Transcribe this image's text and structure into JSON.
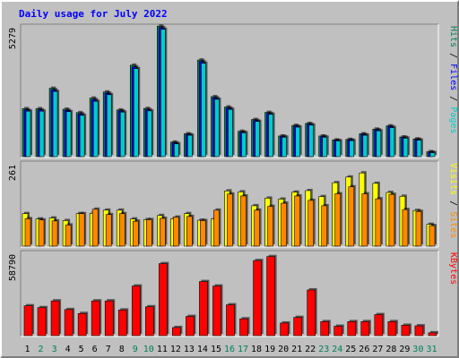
{
  "chart_data": [
    {
      "type": "bar",
      "title": "Daily usage for July 2022",
      "panel": "top",
      "axis_max_label": "5279",
      "right_label_parts": [
        "Pages",
        "Files",
        "Hits"
      ],
      "categories": [
        "1",
        "2",
        "3",
        "4",
        "5",
        "6",
        "7",
        "8",
        "9",
        "10",
        "11",
        "12",
        "13",
        "14",
        "15",
        "16",
        "17",
        "18",
        "19",
        "20",
        "21",
        "22",
        "23",
        "24",
        "25",
        "26",
        "27",
        "28",
        "29",
        "30",
        "31"
      ],
      "weekend_days": [
        "2",
        "3",
        "9",
        "10",
        "16",
        "17",
        "23",
        "24",
        "30",
        "31"
      ],
      "ylim": [
        0,
        5279
      ],
      "series": [
        {
          "name": "Hits",
          "color": "#00805b",
          "values": [
            1950,
            1950,
            2780,
            1930,
            1790,
            2380,
            2630,
            1900,
            3720,
            1960,
            5310,
            590,
            930,
            3930,
            2440,
            2020,
            1030,
            1510,
            1800,
            840,
            1270,
            1350,
            840,
            680,
            700,
            930,
            1120,
            1250,
            800,
            720,
            200
          ]
        },
        {
          "name": "Files",
          "color": "#0000ff",
          "values": [
            1900,
            1900,
            2720,
            1880,
            1740,
            2320,
            2580,
            1860,
            3650,
            1910,
            5250,
            560,
            900,
            3870,
            2390,
            1970,
            1000,
            1470,
            1760,
            820,
            1240,
            1320,
            820,
            660,
            680,
            900,
            1090,
            1220,
            780,
            700,
            180
          ]
        },
        {
          "name": "Pages",
          "color": "#00cccc",
          "values": [
            1850,
            1850,
            2650,
            1830,
            1680,
            2250,
            2520,
            1810,
            3580,
            1860,
            5180,
            520,
            870,
            3800,
            2330,
            1920,
            970,
            1430,
            1720,
            790,
            1200,
            1280,
            790,
            640,
            650,
            870,
            1050,
            1180,
            750,
            670,
            160
          ]
        }
      ]
    },
    {
      "type": "bar",
      "panel": "middle",
      "axis_max_label": "261",
      "right_label_parts": [
        "Sites",
        "Visits"
      ],
      "categories": [
        "1",
        "2",
        "3",
        "4",
        "5",
        "6",
        "7",
        "8",
        "9",
        "10",
        "11",
        "12",
        "13",
        "14",
        "15",
        "16",
        "17",
        "18",
        "19",
        "20",
        "21",
        "22",
        "23",
        "24",
        "25",
        "26",
        "27",
        "28",
        "29",
        "30",
        "31"
      ],
      "ylim": [
        0,
        261
      ],
      "series": [
        {
          "name": "Visits",
          "color": "#ffff00",
          "values": [
            103,
            86,
            89,
            81,
            103,
            104,
            114,
            114,
            86,
            84,
            97,
            87,
            103,
            82,
            86,
            175,
            172,
            128,
            152,
            149,
            171,
            176,
            157,
            201,
            219,
            232,
            199,
            170,
            158,
            113,
            69
          ]
        },
        {
          "name": "Sites",
          "color": "#ff8800",
          "values": [
            87,
            83,
            80,
            67,
            103,
            117,
            100,
            103,
            79,
            84,
            88,
            92,
            94,
            81,
            114,
            165,
            159,
            114,
            126,
            136,
            159,
            145,
            128,
            166,
            188,
            166,
            150,
            164,
            116,
            110,
            65
          ]
        }
      ]
    },
    {
      "type": "bar",
      "panel": "bottom",
      "axis_max_label": "58790",
      "right_label_parts": [
        "KBytes"
      ],
      "categories": [
        "1",
        "2",
        "3",
        "4",
        "5",
        "6",
        "7",
        "8",
        "9",
        "10",
        "11",
        "12",
        "13",
        "14",
        "15",
        "16",
        "17",
        "18",
        "19",
        "20",
        "21",
        "22",
        "23",
        "24",
        "25",
        "26",
        "27",
        "28",
        "29",
        "30",
        "31"
      ],
      "ylim": [
        0,
        58790
      ],
      "series": [
        {
          "name": "KBytes",
          "color": "#ff0000",
          "values": [
            21300,
            20000,
            24800,
            18600,
            15800,
            24800,
            24800,
            18300,
            35400,
            20600,
            51400,
            5800,
            13700,
            38600,
            35400,
            22000,
            12000,
            53600,
            56400,
            9000,
            13000,
            32600,
            10000,
            6700,
            10000,
            10000,
            15000,
            10000,
            7400,
            7000,
            2000
          ]
        }
      ]
    }
  ]
}
